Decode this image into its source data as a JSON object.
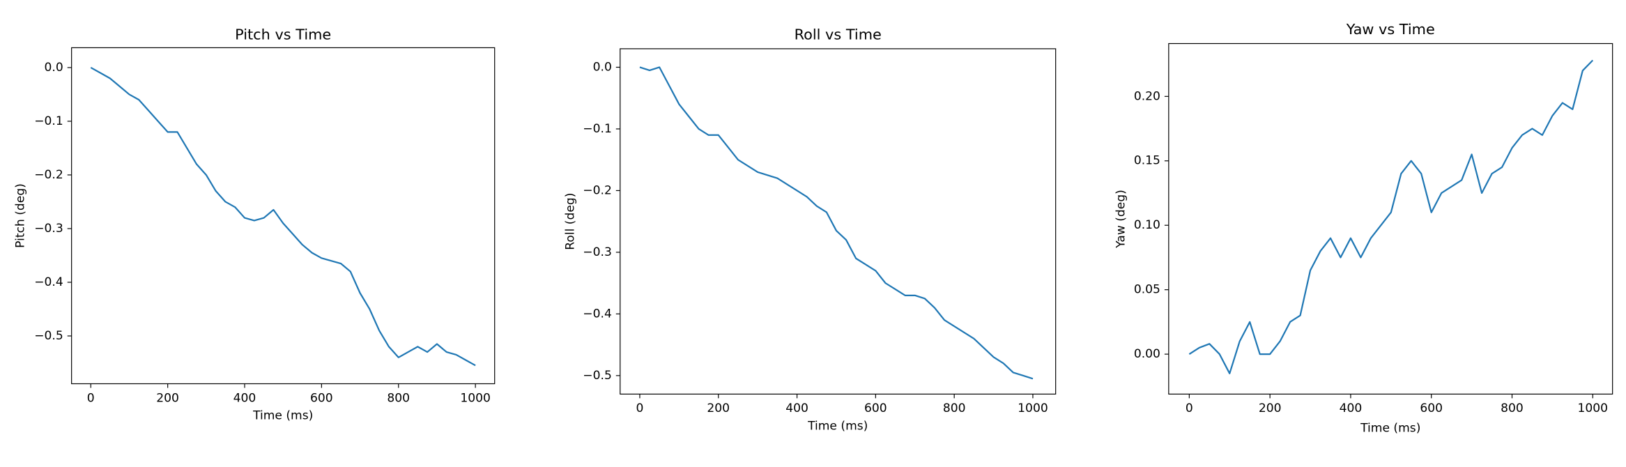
{
  "chart_data": [
    {
      "type": "line",
      "title": "Pitch vs Time",
      "x_label": "Time (ms)",
      "y_label": "Pitch (deg)",
      "color": "#1f77b4",
      "x": [
        0,
        25,
        50,
        75,
        100,
        125,
        150,
        175,
        200,
        225,
        250,
        275,
        300,
        325,
        350,
        375,
        400,
        425,
        450,
        475,
        500,
        525,
        550,
        575,
        600,
        625,
        650,
        675,
        700,
        725,
        750,
        775,
        800,
        825,
        850,
        875,
        900,
        925,
        950,
        975,
        1000
      ],
      "values": [
        0.0,
        -0.01,
        -0.02,
        -0.035,
        -0.05,
        -0.06,
        -0.08,
        -0.1,
        -0.12,
        -0.12,
        -0.15,
        -0.18,
        -0.2,
        -0.23,
        -0.25,
        -0.26,
        -0.28,
        -0.285,
        -0.28,
        -0.265,
        -0.29,
        -0.31,
        -0.33,
        -0.345,
        -0.355,
        -0.36,
        -0.365,
        -0.38,
        -0.42,
        -0.45,
        -0.49,
        -0.52,
        -0.54,
        -0.53,
        -0.52,
        -0.53,
        -0.515,
        -0.53,
        -0.535,
        -0.545,
        -0.555
      ],
      "xlim": [
        -50,
        1050
      ],
      "ylim": [
        -0.589,
        0.037
      ],
      "xticks": [
        0,
        200,
        400,
        600,
        800,
        1000
      ],
      "yticks": [
        {
          "value": 0,
          "label": "0.0"
        },
        {
          "value": -0.1,
          "label": "−0.1"
        },
        {
          "value": -0.2,
          "label": "−0.2"
        },
        {
          "value": -0.3,
          "label": "−0.3"
        },
        {
          "value": -0.4,
          "label": "−0.4"
        },
        {
          "value": -0.5,
          "label": "−0.5"
        }
      ],
      "grid": false
    },
    {
      "type": "line",
      "title": "Roll vs Time",
      "x_label": "Time (ms)",
      "y_label": "Roll (deg)",
      "color": "#1f77b4",
      "x": [
        0,
        25,
        50,
        75,
        100,
        125,
        150,
        175,
        200,
        225,
        250,
        275,
        300,
        325,
        350,
        375,
        400,
        425,
        450,
        475,
        500,
        525,
        550,
        575,
        600,
        625,
        650,
        675,
        700,
        725,
        750,
        775,
        800,
        825,
        850,
        875,
        900,
        925,
        950,
        975,
        1000
      ],
      "values": [
        0.0,
        -0.005,
        0.0,
        -0.03,
        -0.06,
        -0.08,
        -0.1,
        -0.11,
        -0.11,
        -0.13,
        -0.15,
        -0.16,
        -0.17,
        -0.175,
        -0.18,
        -0.19,
        -0.2,
        -0.21,
        -0.225,
        -0.235,
        -0.265,
        -0.28,
        -0.31,
        -0.32,
        -0.33,
        -0.35,
        -0.36,
        -0.37,
        -0.37,
        -0.375,
        -0.39,
        -0.41,
        -0.42,
        -0.43,
        -0.44,
        -0.455,
        -0.47,
        -0.48,
        -0.495,
        -0.5,
        -0.505
      ],
      "xlim": [
        -50,
        1058
      ],
      "ylim": [
        -0.53,
        0.03
      ],
      "xticks": [
        0,
        200,
        400,
        600,
        800,
        1000
      ],
      "yticks": [
        {
          "value": 0,
          "label": "0.0"
        },
        {
          "value": -0.1,
          "label": "−0.1"
        },
        {
          "value": -0.2,
          "label": "−0.2"
        },
        {
          "value": -0.3,
          "label": "−0.3"
        },
        {
          "value": -0.4,
          "label": "−0.4"
        },
        {
          "value": -0.5,
          "label": "−0.5"
        }
      ],
      "grid": false
    },
    {
      "type": "line",
      "title": "Yaw vs Time",
      "x_label": "Time (ms)",
      "y_label": "Yaw (deg)",
      "color": "#1f77b4",
      "x": [
        0,
        25,
        50,
        75,
        100,
        125,
        150,
        175,
        200,
        225,
        250,
        275,
        300,
        325,
        350,
        375,
        400,
        425,
        450,
        475,
        500,
        525,
        550,
        575,
        600,
        625,
        650,
        675,
        700,
        725,
        750,
        775,
        800,
        825,
        850,
        875,
        900,
        925,
        950,
        975,
        1000
      ],
      "values": [
        0.0,
        0.005,
        0.008,
        0.0,
        -0.015,
        0.01,
        0.025,
        0.0,
        0.0,
        0.01,
        0.025,
        0.03,
        0.065,
        0.08,
        0.09,
        0.075,
        0.09,
        0.075,
        0.09,
        0.1,
        0.11,
        0.14,
        0.15,
        0.14,
        0.11,
        0.125,
        0.13,
        0.135,
        0.155,
        0.125,
        0.14,
        0.145,
        0.16,
        0.17,
        0.175,
        0.17,
        0.185,
        0.195,
        0.19,
        0.22,
        0.228
      ],
      "xlim": [
        -51,
        1049
      ],
      "ylim": [
        -0.031,
        0.241
      ],
      "xticks": [
        0,
        200,
        400,
        600,
        800,
        1000
      ],
      "yticks": [
        {
          "value": 0,
          "label": "0.00"
        },
        {
          "value": 0.05,
          "label": "0.05"
        },
        {
          "value": 0.1,
          "label": "0.10"
        },
        {
          "value": 0.15,
          "label": "0.15"
        },
        {
          "value": 0.2,
          "label": "0.20"
        }
      ],
      "grid": false
    }
  ]
}
